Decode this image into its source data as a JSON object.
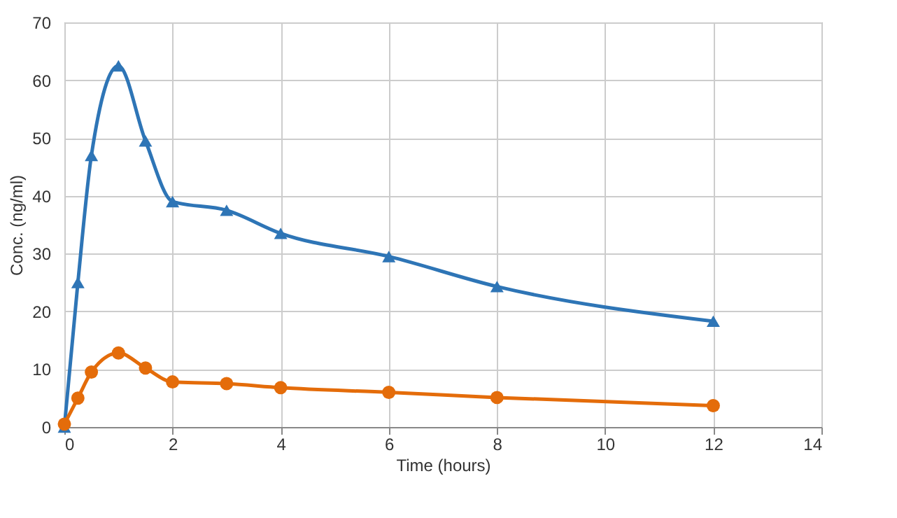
{
  "chart_data": {
    "type": "line",
    "xlabel": "Time (hours)",
    "ylabel": "Conc. (ng/ml)",
    "x": [
      0,
      0.25,
      0.5,
      1,
      1.5,
      2,
      3,
      4,
      6,
      8,
      12
    ],
    "series": [
      {
        "color": "#2e75b6",
        "marker": "triangle",
        "values": [
          0,
          25,
          47,
          62.5,
          49.5,
          39,
          37.5,
          33.5,
          29.5,
          24.3,
          18.3
        ]
      },
      {
        "color": "#e46c0a",
        "marker": "circle",
        "values": [
          0.5,
          5,
          9.5,
          12.8,
          10.2,
          7.8,
          7.5,
          6.8,
          6,
          5.1,
          3.7
        ]
      }
    ],
    "xlim": [
      0,
      14
    ],
    "xticks": [
      0,
      2,
      4,
      6,
      8,
      10,
      12,
      14
    ],
    "ylim": [
      0,
      70
    ],
    "yticks": [
      0,
      10,
      20,
      30,
      40,
      50,
      60,
      70
    ],
    "grid": true,
    "line_style": "solid"
  }
}
